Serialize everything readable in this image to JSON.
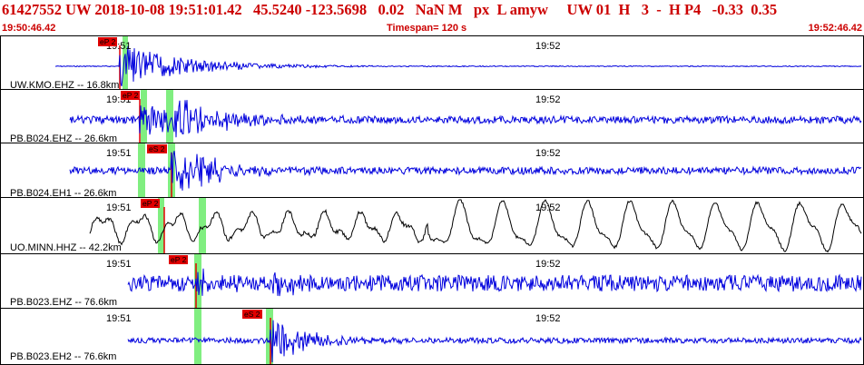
{
  "header": {
    "title": "61427552 UW 2018-10-08 19:51:01.42   45.5240 -123.5698   0.02   NaN M   px  L amyw     UW 01  H   3  -  H P4   -0.33  0.35",
    "start_time": "19:50:46.42",
    "timespan": "Timespan= 120 s",
    "end_time": "19:52:46.42"
  },
  "ticks": {
    "t1": "19:51",
    "t2": "19:52"
  },
  "colors": {
    "trace": "#0000dd",
    "trace_raw": "#000000",
    "pick": "#e00000",
    "window": "#80ee80",
    "header_text": "#cc0000"
  },
  "panels": [
    {
      "label": "UW.KMO.EHZ -- 16.8km",
      "pick": "eP 2"
    },
    {
      "label": "PB.B024.EHZ -- 26.6km",
      "pick": "eP 2"
    },
    {
      "label": "PB.B024.EH1 -- 26.6km",
      "pick": "eS 2"
    },
    {
      "label": "UO.MINN.HHZ -- 42.2km",
      "pick": "eP 2"
    },
    {
      "label": "PB.B023.EHZ -- 76.6km",
      "pick": "eP 2"
    },
    {
      "label": "PB.B023.EH2 -- 76.6km",
      "pick": "eS 2"
    }
  ]
}
